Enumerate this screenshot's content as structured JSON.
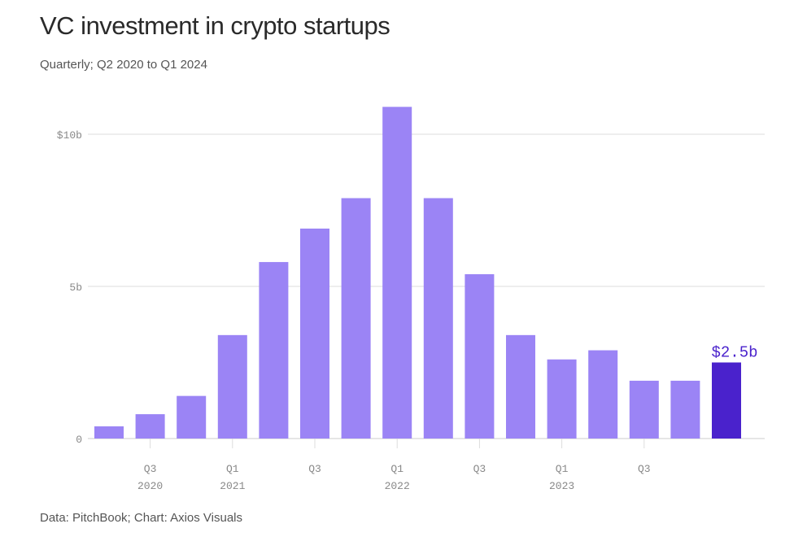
{
  "chart_data": {
    "type": "bar",
    "title": "VC investment in crypto startups",
    "subtitle": "Quarterly; Q2 2020 to Q1 2024",
    "source": "Data: PitchBook; Chart: Axios Visuals",
    "xlabel": "",
    "ylabel": "",
    "ylim": [
      0,
      11
    ],
    "grid": true,
    "categories": [
      "Q2 2020",
      "Q3 2020",
      "Q4 2020",
      "Q1 2021",
      "Q2 2021",
      "Q3 2021",
      "Q4 2021",
      "Q1 2022",
      "Q2 2022",
      "Q3 2022",
      "Q4 2022",
      "Q1 2023",
      "Q2 2023",
      "Q3 2023",
      "Q4 2023",
      "Q1 2024"
    ],
    "values": [
      0.4,
      0.8,
      1.4,
      3.4,
      5.8,
      6.9,
      7.9,
      10.9,
      7.9,
      5.4,
      3.4,
      2.6,
      2.9,
      1.9,
      1.9,
      2.5
    ],
    "unit": "billion USD",
    "highlight_index": 15,
    "highlight_label": "$2.5b",
    "y_ticks": [
      {
        "value": 0,
        "label": "0"
      },
      {
        "value": 5,
        "label": "5b"
      },
      {
        "value": 10,
        "label": "$10b"
      }
    ],
    "x_ticks": [
      {
        "index": 1,
        "label": "Q3",
        "year": "2020"
      },
      {
        "index": 3,
        "label": "Q1",
        "year": "2021"
      },
      {
        "index": 5,
        "label": "Q3",
        "year": ""
      },
      {
        "index": 7,
        "label": "Q1",
        "year": "2022"
      },
      {
        "index": 9,
        "label": "Q3",
        "year": ""
      },
      {
        "index": 11,
        "label": "Q1",
        "year": "2023"
      },
      {
        "index": 13,
        "label": "Q3",
        "year": ""
      }
    ],
    "colors": {
      "bar": "#9b84f5",
      "highlight": "#4a22cc",
      "highlight_label": "#4a22cc",
      "grid": "#dddddd",
      "axis_text": "#888888"
    }
  }
}
